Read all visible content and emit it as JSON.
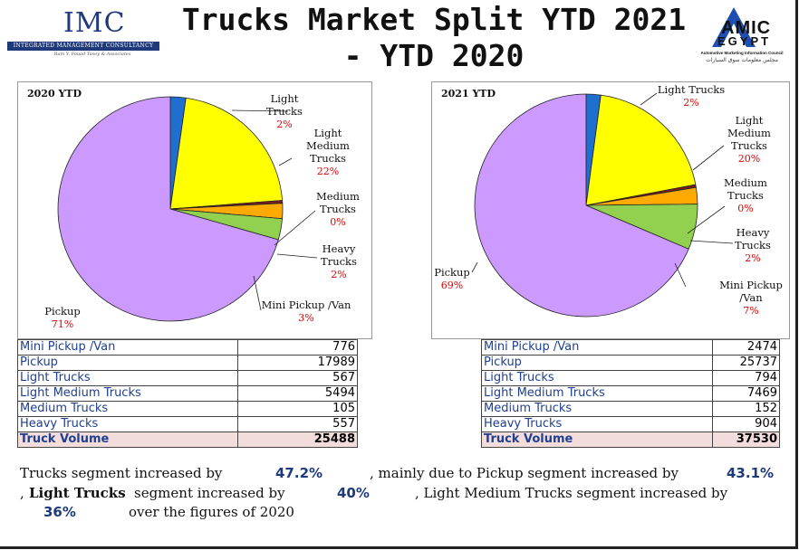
{
  "header": {
    "title_line1": "Trucks Market Split YTD 2021",
    "title_line2": "- YTD 2020",
    "imc_logo": {
      "text": "IMC",
      "bar_text": "INTEGRATED MANAGEMENT CONSULTANCY",
      "tagline": "Ram Y. Fouad Tasey & Associates"
    },
    "amic_logo": {
      "word": "AMIC",
      "country": "EGYPT",
      "subtitle": "Automotive Marketing Information Council",
      "arabic": "مجلس معلومات سوق السيارات"
    }
  },
  "colors": {
    "Mini Pickup /Van": "#92d050",
    "Pickup": "#cc99ff",
    "Light Trucks": "#1f6fd0",
    "Light Medium Trucks": "#ffff00",
    "Medium Trucks": "#7a1f1f",
    "Heavy Trucks": "#ffaa00"
  },
  "chart_data": [
    {
      "type": "pie",
      "title": "2020 YTD",
      "categories": [
        "Mini Pickup /Van",
        "Pickup",
        "Light Trucks",
        "Light Medium Trucks",
        "Medium Trucks",
        "Heavy Trucks"
      ],
      "values": [
        776,
        17989,
        567,
        5494,
        105,
        557
      ],
      "labels": [
        {
          "name_lines": [
            "Light",
            "Trucks"
          ],
          "pct": "2%"
        },
        {
          "name_lines": [
            "Light",
            "Medium",
            "Trucks"
          ],
          "pct": "22%"
        },
        {
          "name_lines": [
            "Medium",
            "Trucks"
          ],
          "pct": "0%"
        },
        {
          "name_lines": [
            "Heavy",
            "Trucks"
          ],
          "pct": "2%"
        },
        {
          "name_lines": [
            "Mini Pickup /Van"
          ],
          "pct": "3%"
        },
        {
          "name_lines": [
            "Pickup"
          ],
          "pct": "71%"
        }
      ]
    },
    {
      "type": "pie",
      "title": "2021 YTD",
      "categories": [
        "Mini Pickup /Van",
        "Pickup",
        "Light Trucks",
        "Light Medium Trucks",
        "Medium Trucks",
        "Heavy Trucks"
      ],
      "values": [
        2474,
        25737,
        794,
        7469,
        152,
        904
      ],
      "labels": [
        {
          "name_lines": [
            "Light Trucks"
          ],
          "pct": "2%"
        },
        {
          "name_lines": [
            "Light",
            "Medium",
            "Trucks"
          ],
          "pct": "20%"
        },
        {
          "name_lines": [
            "Medium",
            "Trucks"
          ],
          "pct": "0%"
        },
        {
          "name_lines": [
            "Heavy",
            "Trucks"
          ],
          "pct": "2%"
        },
        {
          "name_lines": [
            "Mini Pickup",
            "/Van"
          ],
          "pct": "7%"
        },
        {
          "name_lines": [
            "Pickup"
          ],
          "pct": "69%"
        }
      ]
    }
  ],
  "tables": [
    {
      "rows": [
        {
          "name": "Mini Pickup /Van",
          "value": "776"
        },
        {
          "name": "Pickup",
          "value": "17989"
        },
        {
          "name": "Light Trucks",
          "value": "567"
        },
        {
          "name": "Light Medium Trucks",
          "value": "5494"
        },
        {
          "name": "Medium Trucks",
          "value": "105"
        },
        {
          "name": "Heavy Trucks",
          "value": "557"
        }
      ],
      "total": {
        "name": "Truck Volume",
        "value": "25488"
      }
    },
    {
      "rows": [
        {
          "name": "Mini Pickup /Van",
          "value": "2474"
        },
        {
          "name": "Pickup",
          "value": "25737"
        },
        {
          "name": "Light Trucks",
          "value": "794"
        },
        {
          "name": "Light Medium Trucks",
          "value": "7469"
        },
        {
          "name": "Medium Trucks",
          "value": "152"
        },
        {
          "name": "Heavy Trucks",
          "value": "904"
        }
      ],
      "total": {
        "name": "Truck Volume",
        "value": "37530"
      }
    }
  ],
  "summary": {
    "p1": "Trucks segment increased by",
    "v1": "47.2%",
    "p2": ", mainly due to Pickup segment increased by",
    "v2": "43.1%",
    "p3": ",",
    "p4": "Light Trucks",
    "p5": "segment increased by",
    "v3": "40%",
    "p6": ", Light Medium Trucks segment increased by",
    "v4": "36%",
    "p7": "over the figures of 2020"
  }
}
